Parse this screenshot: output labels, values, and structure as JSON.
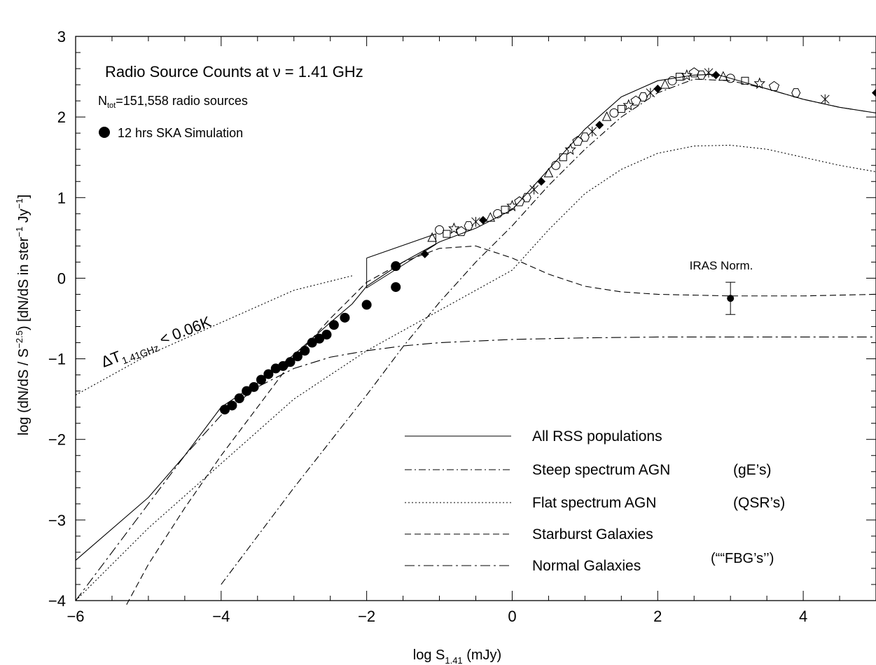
{
  "chart_data": {
    "type": "line",
    "title": "Radio Source Counts at ν = 1.41 GHz",
    "subtitle": {
      "base": "N",
      "sub": "tot",
      "rest": "=151,558 radio sources"
    },
    "sim_label": "12 hrs SKA Simulation",
    "xlabel": {
      "base": "log S",
      "sub": "1.41",
      "rest": " (mJy)"
    },
    "ylabel": {
      "p1": "log (dN/dS / S",
      "sup1": "−2.5",
      "p2": ")  [dN/dS in ster",
      "sup2": "−1",
      "p3": " Jy",
      "sup3": "−1",
      "p4": "]"
    },
    "xlim": [
      -6,
      5
    ],
    "ylim": [
      -4,
      3
    ],
    "xticks": [
      -6,
      -4,
      -2,
      0,
      2,
      4
    ],
    "xtick_labels": [
      "−6",
      "−4",
      "−2",
      "0",
      "2",
      "4"
    ],
    "yticks": [
      3,
      2,
      1,
      0,
      -1,
      -2,
      -3,
      -4
    ],
    "ytick_labels": [
      "3",
      "2",
      "1",
      "0",
      "−1",
      "−2",
      "−3",
      "−4"
    ],
    "grid": false,
    "legend_position": "bottom-right",
    "legend_extra": "(““FBG’s’’)",
    "series": [
      {
        "name": "All RSS populations",
        "dash": "solid",
        "x": [
          -6,
          -5,
          -4.5,
          -4,
          -3.5,
          -3,
          -2.5,
          -2.2,
          -2,
          -1.5,
          -1,
          -0.5,
          0,
          0.5,
          1,
          1.5,
          2,
          2.5,
          2.8,
          3,
          3.5,
          4,
          4.5,
          5
        ],
        "y": [
          -3.5,
          -2.72,
          -2.2,
          -1.6,
          -1.3,
          -0.95,
          -0.55,
          -0.32,
          -0.1,
          0.2,
          0.45,
          0.62,
          0.85,
          1.35,
          1.85,
          2.25,
          2.45,
          2.52,
          2.53,
          2.48,
          2.35,
          2.22,
          2.12,
          2.05
        ]
      },
      {
        "name": "Steep spectrum AGN",
        "sub_label": "(gE’s)",
        "dash": "steep",
        "x": [
          -4,
          -3,
          -2,
          -1.5,
          -1,
          -0.5,
          0,
          0.5,
          1,
          1.5,
          2,
          2.5,
          3,
          3.5,
          4,
          4.5,
          5
        ],
        "y": [
          -3.8,
          -2.6,
          -1.45,
          -0.85,
          -0.3,
          0.2,
          0.65,
          1.15,
          1.6,
          2.0,
          2.3,
          2.47,
          2.45,
          2.35,
          2.22,
          2.12,
          2.05
        ]
      },
      {
        "name": "Flat spectrum AGN",
        "sub_label": "(QSR’s)",
        "dash": "dotted",
        "x": [
          -6,
          -5,
          -4,
          -3,
          -2,
          -1,
          0,
          0.5,
          1,
          1.5,
          2,
          2.5,
          3,
          3.5,
          4,
          4.5,
          5
        ],
        "y": [
          -4,
          -3.1,
          -2.3,
          -1.5,
          -0.9,
          -0.4,
          0.1,
          0.6,
          1.05,
          1.35,
          1.55,
          1.64,
          1.65,
          1.6,
          1.5,
          1.4,
          1.32
        ]
      },
      {
        "name": "Starburst Galaxies",
        "dash": "dashed",
        "x": [
          -5.3,
          -5,
          -4.5,
          -4,
          -3.5,
          -3,
          -2.5,
          -2,
          -1.5,
          -1,
          -0.5,
          0,
          0.5,
          1,
          1.5,
          2,
          3,
          4,
          5
        ],
        "y": [
          -4.05,
          -3.55,
          -2.85,
          -2.2,
          -1.6,
          -1.0,
          -0.5,
          -0.05,
          0.2,
          0.37,
          0.4,
          0.25,
          0.05,
          -0.1,
          -0.17,
          -0.2,
          -0.22,
          -0.22,
          -0.2
        ]
      },
      {
        "name": "Normal Galaxies",
        "dash": "dashdot",
        "x": [
          -6,
          -5,
          -4.5,
          -4,
          -3.5,
          -3,
          -2.5,
          -2,
          -1.5,
          -1,
          0,
          1,
          2,
          3,
          4,
          5
        ],
        "y": [
          -4,
          -2.8,
          -2.2,
          -1.7,
          -1.35,
          -1.12,
          -0.98,
          -0.9,
          -0.84,
          -0.8,
          -0.76,
          -0.74,
          -0.73,
          -0.73,
          -0.73,
          -0.73
        ]
      }
    ],
    "confusion_limit": {
      "label_base": "ΔT",
      "label_sub": "1.41GHz",
      "label_rest": " < 0.06K",
      "x": [
        -6,
        -5,
        -4,
        -3,
        -2.2
      ],
      "y": [
        -1.45,
        -0.95,
        -0.55,
        -0.15,
        0.03
      ]
    },
    "ska_simulation": {
      "x": [
        -3.95,
        -3.85,
        -3.75,
        -3.65,
        -3.55,
        -3.45,
        -3.35,
        -3.25,
        -3.15,
        -3.05,
        -2.95,
        -2.85,
        -2.75,
        -2.65,
        -2.55,
        -2.45,
        -2.3,
        -2.0,
        -1.6
      ],
      "y": [
        -1.63,
        -1.58,
        -1.49,
        -1.4,
        -1.35,
        -1.26,
        -1.19,
        -1.12,
        -1.09,
        -1.04,
        -0.97,
        -0.9,
        -0.8,
        -0.75,
        -0.7,
        -0.58,
        -0.49,
        -0.33,
        -0.11
      ]
    },
    "ska_extra_points": {
      "x": [
        -1.6
      ],
      "y": [
        0.15
      ]
    },
    "swire_box": {
      "x": [
        -2.0,
        -2.0,
        -1.05,
        -1.05,
        -2.0
      ],
      "y": [
        0.25,
        -0.12,
        0.42,
        0.55,
        0.25
      ]
    },
    "iras_norm": {
      "label": "IRAS Norm.",
      "x": 3.0,
      "y": -0.25,
      "yerr_low": -0.45,
      "yerr_high": -0.05
    },
    "observed_counts": {
      "note": "literature source-count data points (mixed markers)",
      "x": [
        -1.2,
        -1.1,
        -1.0,
        -0.9,
        -0.8,
        -0.7,
        -0.6,
        -0.5,
        -0.4,
        -0.3,
        -0.2,
        -0.1,
        0.0,
        0.1,
        0.2,
        0.3,
        0.4,
        0.5,
        0.6,
        0.7,
        0.8,
        0.9,
        1.0,
        1.1,
        1.2,
        1.3,
        1.4,
        1.5,
        1.6,
        1.7,
        1.8,
        1.9,
        2.0,
        2.1,
        2.2,
        2.3,
        2.4,
        2.5,
        2.6,
        2.7,
        2.8,
        2.9,
        3.0,
        3.2,
        3.4,
        3.6,
        3.9,
        4.3,
        5.0
      ],
      "y": [
        0.3,
        0.5,
        0.6,
        0.55,
        0.62,
        0.58,
        0.65,
        0.7,
        0.72,
        0.75,
        0.8,
        0.85,
        0.9,
        0.95,
        1.0,
        1.1,
        1.2,
        1.3,
        1.4,
        1.5,
        1.6,
        1.7,
        1.75,
        1.82,
        1.9,
        2.0,
        2.05,
        2.1,
        2.15,
        2.2,
        2.25,
        2.3,
        2.35,
        2.4,
        2.45,
        2.5,
        2.52,
        2.55,
        2.52,
        2.55,
        2.52,
        2.5,
        2.48,
        2.45,
        2.42,
        2.38,
        2.3,
        2.22,
        2.3
      ]
    },
    "observed_markers": [
      "diamond",
      "triangle",
      "circle",
      "square",
      "star",
      "pentagon",
      "hexagon",
      "cross-star"
    ]
  }
}
